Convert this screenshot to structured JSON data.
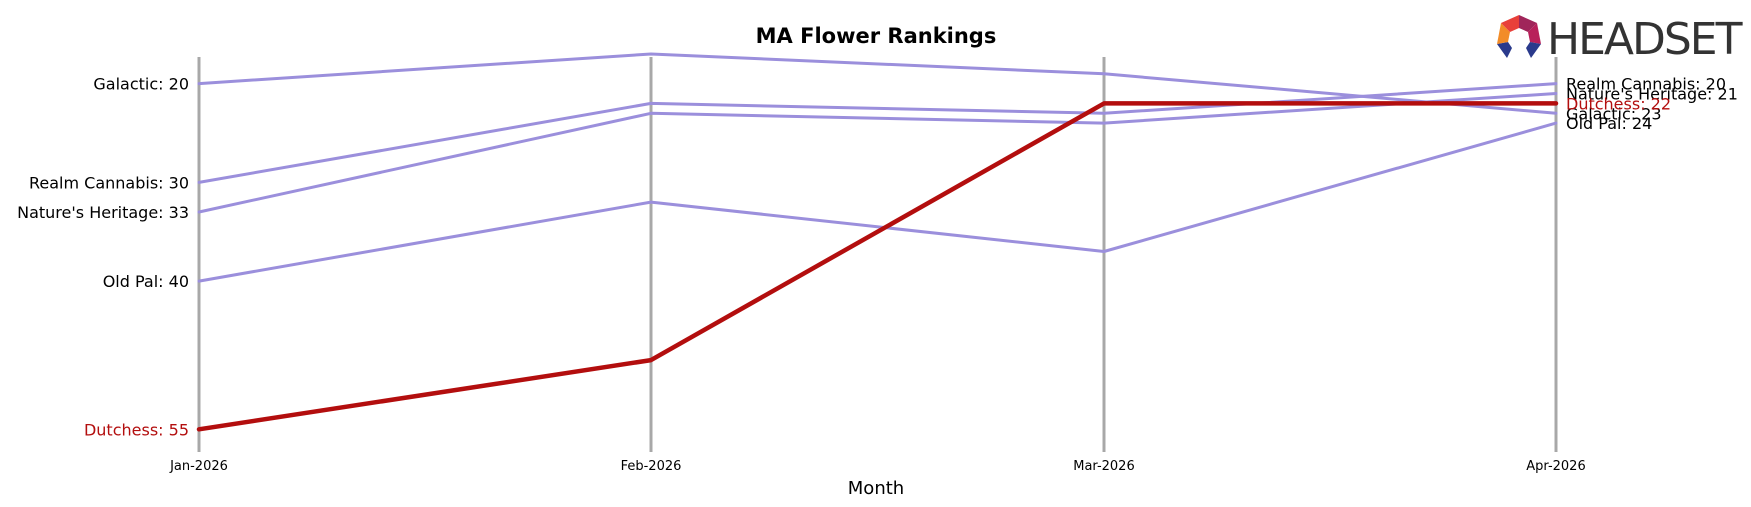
{
  "chart_data": {
    "type": "line",
    "title": "MA Flower Rankings",
    "xlabel": "Month",
    "ylabel": "",
    "categories": [
      "Jan-2026",
      "Feb-2026",
      "Mar-2026",
      "Apr-2026"
    ],
    "y_inverted": true,
    "ylim": [
      57,
      17
    ],
    "grid": false,
    "series": [
      {
        "name": "Galactic",
        "values": [
          20,
          17,
          19,
          23
        ],
        "color": "#9b8fdc",
        "highlight": false
      },
      {
        "name": "Realm Cannabis",
        "values": [
          30,
          22,
          23,
          20
        ],
        "color": "#9b8fdc",
        "highlight": false
      },
      {
        "name": "Nature's Heritage",
        "values": [
          33,
          23,
          24,
          21
        ],
        "color": "#9b8fdc",
        "highlight": false
      },
      {
        "name": "Old Pal",
        "values": [
          40,
          32,
          37,
          24
        ],
        "color": "#9b8fdc",
        "highlight": false
      },
      {
        "name": "Dutchess",
        "values": [
          55,
          48,
          22,
          22
        ],
        "color": "#b30e0e",
        "highlight": true
      }
    ]
  },
  "brand": {
    "name": "HEADSET",
    "logo_icon": "headset-logo-icon",
    "logo_colors": [
      "#e8403a",
      "#a0255a",
      "#6a2a8c",
      "#2a3a8c",
      "#f28c28"
    ]
  },
  "colors": {
    "axis_line": "#a8a8a8",
    "text": "#000000"
  }
}
